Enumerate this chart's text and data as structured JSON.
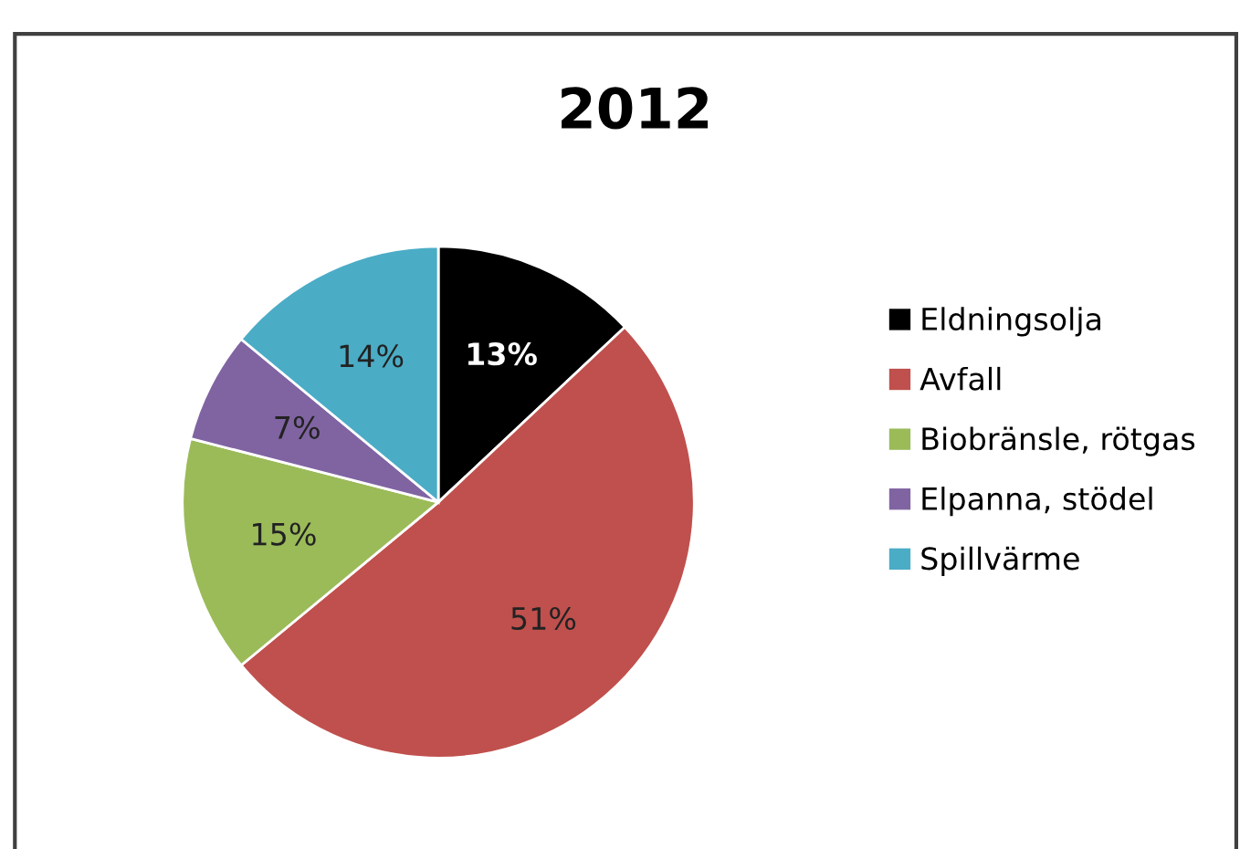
{
  "chart_data": {
    "type": "pie",
    "title": "2012",
    "categories": [
      "Eldningsolja",
      "Avfall",
      "Biobränsle, rötgas",
      "Elpanna, stödel",
      "Spillvärme"
    ],
    "values": [
      13,
      51,
      15,
      7,
      14
    ],
    "colors": [
      "#000000",
      "#c0504d",
      "#9bbb59",
      "#8064a2",
      "#4bacc6"
    ],
    "value_labels": [
      "13%",
      "51%",
      "15%",
      "7%",
      "14%"
    ],
    "legend": "right"
  }
}
